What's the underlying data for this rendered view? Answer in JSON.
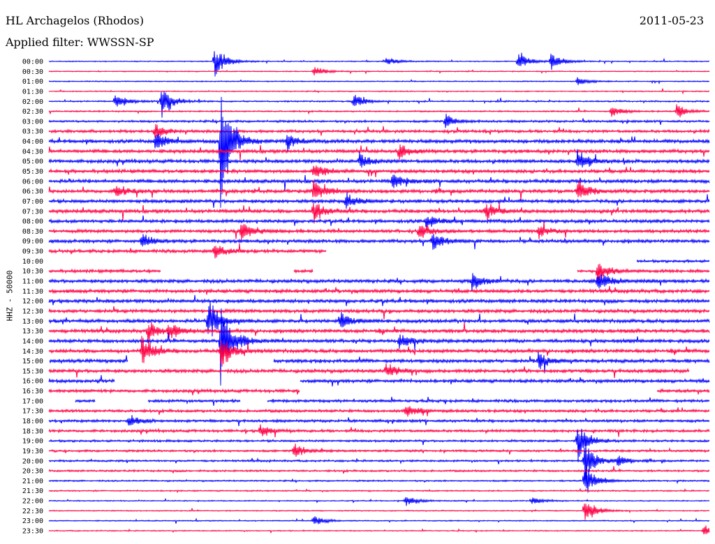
{
  "header": {
    "station": "HL Archagelos (Rhodos)",
    "date": "2011-05-23",
    "filter": "Applied filter: WWSSN-SP"
  },
  "chart_data": {
    "type": "line",
    "ylabel": "HHZ - 50000",
    "series_colors": [
      "#0000ff",
      "#ff0044"
    ],
    "time_labels": [
      "00:00",
      "00:30",
      "01:00",
      "01:30",
      "02:00",
      "02:30",
      "03:00",
      "03:30",
      "04:00",
      "04:30",
      "05:00",
      "05:30",
      "06:00",
      "06:30",
      "07:00",
      "07:30",
      "08:00",
      "08:30",
      "09:00",
      "09:30",
      "10:00",
      "10:30",
      "11:00",
      "11:30",
      "12:00",
      "12:30",
      "13:00",
      "13:30",
      "14:00",
      "14:30",
      "15:00",
      "15:30",
      "16:00",
      "16:30",
      "17:00",
      "17:30",
      "18:00",
      "18:30",
      "19:00",
      "19:30",
      "20:00",
      "20:30",
      "21:00",
      "21:30",
      "22:00",
      "22:30",
      "23:00",
      "23:30"
    ],
    "noise_level": [
      0.5,
      0.5,
      0.5,
      0.5,
      0.7,
      0.7,
      1.0,
      1.3,
      1.6,
      1.6,
      1.6,
      1.6,
      1.6,
      1.6,
      1.6,
      1.6,
      1.5,
      1.5,
      1.5,
      1.5,
      1.2,
      1.4,
      1.6,
      1.6,
      1.6,
      1.6,
      1.6,
      1.6,
      1.6,
      1.6,
      1.6,
      1.6,
      1.5,
      1.4,
      1.3,
      1.3,
      1.2,
      1.2,
      1.0,
      1.0,
      0.9,
      0.9,
      0.7,
      0.6,
      0.5,
      0.5,
      0.5,
      0.5
    ],
    "gaps": [
      [],
      [],
      [],
      [],
      [],
      [],
      [],
      [],
      [],
      [],
      [],
      [],
      [],
      [],
      [],
      [],
      [],
      [],
      [],
      [
        [
          0.42,
          1.0
        ]
      ],
      [
        [
          0.0,
          0.89
        ]
      ],
      [
        [
          0.17,
          0.37
        ],
        [
          0.4,
          0.8
        ]
      ],
      [],
      [],
      [],
      [],
      [],
      [],
      [],
      [],
      [
        [
          0.0,
          0.0
        ],
        [
          0.12,
          0.34
        ]
      ],
      [
        [
          0.97,
          1.0
        ]
      ],
      [
        [
          0.1,
          0.38
        ]
      ],
      [
        [
          0.38,
          0.92
        ]
      ],
      [
        [
          0.0,
          0.04
        ],
        [
          0.07,
          0.15
        ],
        [
          0.29,
          0.33
        ]
      ],
      [],
      [],
      [],
      [],
      [],
      [],
      [],
      [],
      [],
      [],
      [],
      [],
      []
    ],
    "events": [
      {
        "row": 0,
        "x": 0.71,
        "amp": 18
      },
      {
        "row": 0,
        "x": 0.76,
        "amp": 14
      },
      {
        "row": 0,
        "x": 0.51,
        "amp": 8
      },
      {
        "row": 0,
        "x": 0.25,
        "amp": 28
      },
      {
        "row": 1,
        "x": 0.4,
        "amp": 10
      },
      {
        "row": 2,
        "x": 0.8,
        "amp": 8
      },
      {
        "row": 4,
        "x": 0.1,
        "amp": 14
      },
      {
        "row": 4,
        "x": 0.46,
        "amp": 14
      },
      {
        "row": 4,
        "x": 0.17,
        "amp": 30
      },
      {
        "row": 5,
        "x": 0.85,
        "amp": 10
      },
      {
        "row": 5,
        "x": 0.95,
        "amp": 12
      },
      {
        "row": 6,
        "x": 0.6,
        "amp": 12
      },
      {
        "row": 7,
        "x": 0.16,
        "amp": 14
      },
      {
        "row": 8,
        "x": 0.26,
        "amp": 100
      },
      {
        "row": 8,
        "x": 0.16,
        "amp": 16
      },
      {
        "row": 8,
        "x": 0.36,
        "amp": 14
      },
      {
        "row": 9,
        "x": 0.53,
        "amp": 16
      },
      {
        "row": 10,
        "x": 0.47,
        "amp": 14
      },
      {
        "row": 10,
        "x": 0.8,
        "amp": 20
      },
      {
        "row": 11,
        "x": 0.4,
        "amp": 14
      },
      {
        "row": 12,
        "x": 0.52,
        "amp": 14
      },
      {
        "row": 13,
        "x": 0.4,
        "amp": 20
      },
      {
        "row": 13,
        "x": 0.8,
        "amp": 24
      },
      {
        "row": 13,
        "x": 0.1,
        "amp": 12
      },
      {
        "row": 14,
        "x": 0.45,
        "amp": 14
      },
      {
        "row": 15,
        "x": 0.4,
        "amp": 20
      },
      {
        "row": 15,
        "x": 0.66,
        "amp": 16
      },
      {
        "row": 16,
        "x": 0.57,
        "amp": 12
      },
      {
        "row": 17,
        "x": 0.29,
        "amp": 20
      },
      {
        "row": 17,
        "x": 0.56,
        "amp": 16
      },
      {
        "row": 17,
        "x": 0.74,
        "amp": 14
      },
      {
        "row": 18,
        "x": 0.58,
        "amp": 18
      },
      {
        "row": 18,
        "x": 0.14,
        "amp": 14
      },
      {
        "row": 19,
        "x": 0.25,
        "amp": 14
      },
      {
        "row": 21,
        "x": 0.83,
        "amp": 18
      },
      {
        "row": 22,
        "x": 0.64,
        "amp": 16
      },
      {
        "row": 22,
        "x": 0.83,
        "amp": 20
      },
      {
        "row": 26,
        "x": 0.24,
        "amp": 40
      },
      {
        "row": 26,
        "x": 0.44,
        "amp": 14
      },
      {
        "row": 27,
        "x": 0.15,
        "amp": 18
      },
      {
        "row": 27,
        "x": 0.18,
        "amp": 16
      },
      {
        "row": 28,
        "x": 0.26,
        "amp": 70
      },
      {
        "row": 28,
        "x": 0.53,
        "amp": 14
      },
      {
        "row": 29,
        "x": 0.14,
        "amp": 30
      },
      {
        "row": 29,
        "x": 0.26,
        "amp": 30
      },
      {
        "row": 30,
        "x": 0.74,
        "amp": 14
      },
      {
        "row": 31,
        "x": 0.51,
        "amp": 14
      },
      {
        "row": 35,
        "x": 0.54,
        "amp": 14
      },
      {
        "row": 36,
        "x": 0.12,
        "amp": 12
      },
      {
        "row": 37,
        "x": 0.32,
        "amp": 12
      },
      {
        "row": 38,
        "x": 0.8,
        "amp": 34
      },
      {
        "row": 39,
        "x": 0.37,
        "amp": 14
      },
      {
        "row": 40,
        "x": 0.81,
        "amp": 40
      },
      {
        "row": 40,
        "x": 0.86,
        "amp": 10
      },
      {
        "row": 42,
        "x": 0.81,
        "amp": 30
      },
      {
        "row": 44,
        "x": 0.54,
        "amp": 10
      },
      {
        "row": 44,
        "x": 0.73,
        "amp": 8
      },
      {
        "row": 45,
        "x": 0.81,
        "amp": 24
      },
      {
        "row": 46,
        "x": 0.4,
        "amp": 10
      },
      {
        "row": 47,
        "x": 0.99,
        "amp": 10
      }
    ]
  }
}
